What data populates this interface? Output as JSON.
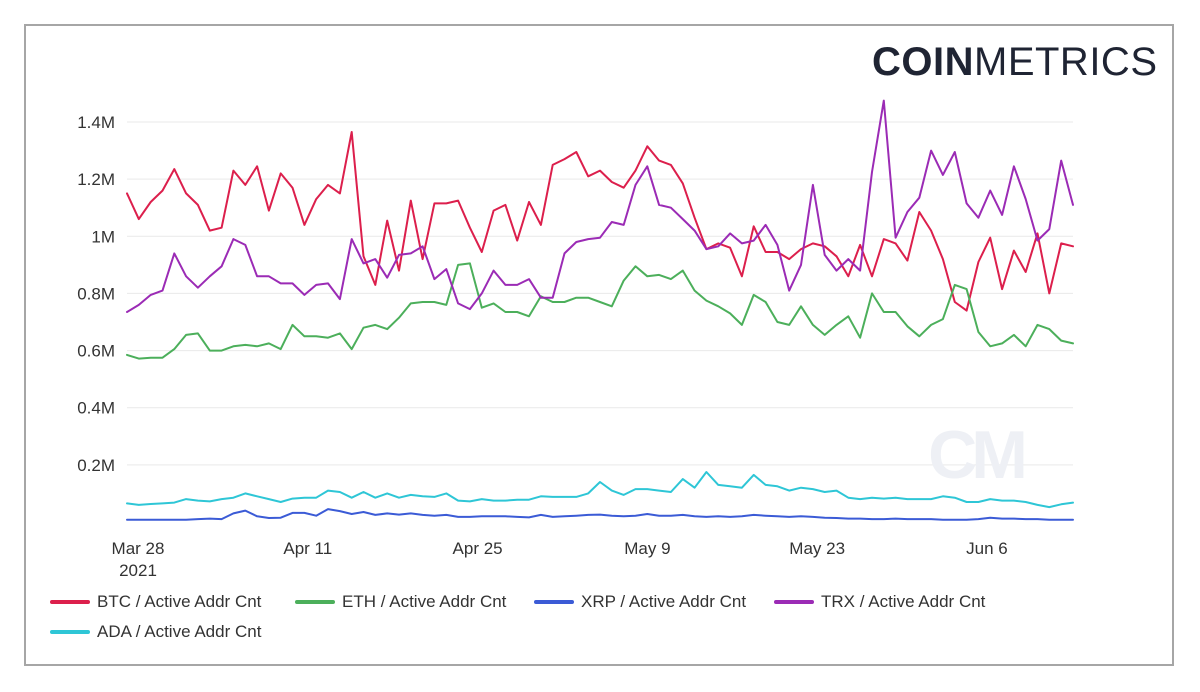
{
  "brand": {
    "part1": "COIN",
    "part2": "METRICS"
  },
  "watermark": "CM",
  "chart_data": {
    "type": "line",
    "ylim": [
      0,
      1400000
    ],
    "y_ticks": [
      {
        "value": 200000,
        "label": "0.2M"
      },
      {
        "value": 400000,
        "label": "0.4M"
      },
      {
        "value": 600000,
        "label": "0.6M"
      },
      {
        "value": 800000,
        "label": "0.8M"
      },
      {
        "value": 1000000,
        "label": "1M"
      },
      {
        "value": 1200000,
        "label": "1.2M"
      },
      {
        "value": 1400000,
        "label": "1.4M"
      }
    ],
    "x_start": "2021-03-28",
    "x_end": "2021-06-14",
    "x_ticks": [
      {
        "date": "2021-03-28",
        "label": "Mar 28",
        "sublabel": "2021"
      },
      {
        "date": "2021-04-11",
        "label": "Apr 11"
      },
      {
        "date": "2021-04-25",
        "label": "Apr 25"
      },
      {
        "date": "2021-05-09",
        "label": "May 9"
      },
      {
        "date": "2021-05-23",
        "label": "May 23"
      },
      {
        "date": "2021-06-06",
        "label": "Jun 6"
      }
    ],
    "grid": true,
    "legend_position": "bottom-left",
    "series": [
      {
        "name": "BTC / Active Addr Cnt",
        "color": "#dc1f4c",
        "values": [
          1150000,
          1060000,
          1120000,
          1160000,
          1235000,
          1150000,
          1110000,
          1020000,
          1030000,
          1230000,
          1180000,
          1245000,
          1090000,
          1220000,
          1170000,
          1040000,
          1130000,
          1180000,
          1150000,
          1365000,
          930000,
          830000,
          1055000,
          880000,
          1125000,
          920000,
          1115000,
          1115000,
          1125000,
          1030000,
          945000,
          1090000,
          1110000,
          985000,
          1120000,
          1040000,
          1250000,
          1270000,
          1295000,
          1210000,
          1230000,
          1190000,
          1170000,
          1230000,
          1315000,
          1265000,
          1250000,
          1185000,
          1065000,
          955000,
          975000,
          960000,
          860000,
          1035000,
          945000,
          945000,
          920000,
          955000,
          975000,
          965000,
          930000,
          860000,
          970000,
          860000,
          990000,
          975000,
          915000,
          1085000,
          1020000,
          920000,
          770000,
          740000,
          910000,
          995000,
          815000,
          950000,
          875000,
          1010000,
          800000,
          975000,
          965000
        ]
      },
      {
        "name": "ETH / Active Addr Cnt",
        "color": "#4caf5b",
        "values": [
          585000,
          572000,
          575000,
          575000,
          605000,
          655000,
          660000,
          600000,
          600000,
          615000,
          620000,
          615000,
          625000,
          605000,
          690000,
          650000,
          650000,
          645000,
          660000,
          605000,
          680000,
          690000,
          675000,
          715000,
          765000,
          770000,
          770000,
          760000,
          900000,
          905000,
          750000,
          765000,
          735000,
          735000,
          720000,
          790000,
          770000,
          770000,
          785000,
          785000,
          770000,
          755000,
          845000,
          895000,
          860000,
          865000,
          850000,
          880000,
          810000,
          775000,
          755000,
          730000,
          690000,
          795000,
          770000,
          700000,
          690000,
          755000,
          690000,
          655000,
          690000,
          720000,
          645000,
          800000,
          735000,
          735000,
          685000,
          650000,
          690000,
          710000,
          830000,
          815000,
          665000,
          615000,
          625000,
          655000,
          615000,
          690000,
          675000,
          635000,
          625000
        ]
      },
      {
        "name": "XRP / Active Addr Cnt",
        "color": "#3b5bd6",
        "values": [
          8000,
          8000,
          8000,
          8000,
          8000,
          8000,
          10000,
          12000,
          10000,
          30000,
          40000,
          20000,
          14000,
          15000,
          32000,
          32000,
          22000,
          45000,
          38000,
          28000,
          35000,
          25000,
          30000,
          26000,
          30000,
          25000,
          22000,
          25000,
          18000,
          18000,
          20000,
          20000,
          20000,
          18000,
          16000,
          25000,
          18000,
          20000,
          22000,
          25000,
          26000,
          22000,
          20000,
          22000,
          28000,
          22000,
          22000,
          25000,
          20000,
          18000,
          20000,
          18000,
          20000,
          25000,
          22000,
          20000,
          18000,
          20000,
          18000,
          15000,
          14000,
          12000,
          12000,
          10000,
          10000,
          12000,
          10000,
          10000,
          10000,
          8000,
          8000,
          8000,
          10000,
          15000,
          12000,
          12000,
          10000,
          10000,
          8000,
          8000,
          8000
        ]
      },
      {
        "name": "TRX / Active Addr Cnt",
        "color": "#9b2bb5",
        "values": [
          735000,
          760000,
          795000,
          810000,
          940000,
          860000,
          820000,
          860000,
          895000,
          990000,
          970000,
          860000,
          860000,
          835000,
          835000,
          795000,
          830000,
          835000,
          780000,
          990000,
          905000,
          920000,
          855000,
          935000,
          940000,
          965000,
          850000,
          885000,
          765000,
          745000,
          800000,
          880000,
          830000,
          830000,
          850000,
          785000,
          785000,
          940000,
          980000,
          990000,
          995000,
          1050000,
          1040000,
          1180000,
          1245000,
          1110000,
          1100000,
          1060000,
          1020000,
          955000,
          965000,
          1010000,
          975000,
          985000,
          1040000,
          970000,
          810000,
          900000,
          1180000,
          935000,
          880000,
          920000,
          880000,
          1225000,
          1475000,
          995000,
          1085000,
          1135000,
          1300000,
          1215000,
          1295000,
          1115000,
          1065000,
          1160000,
          1075000,
          1245000,
          1130000,
          985000,
          1025000,
          1265000,
          1110000
        ]
      },
      {
        "name": "ADA / Active Addr Cnt",
        "color": "#2ec6d6",
        "values": [
          65000,
          60000,
          63000,
          65000,
          68000,
          80000,
          75000,
          72000,
          80000,
          85000,
          100000,
          90000,
          80000,
          70000,
          82000,
          85000,
          85000,
          110000,
          105000,
          85000,
          105000,
          85000,
          100000,
          85000,
          95000,
          90000,
          88000,
          100000,
          75000,
          72000,
          80000,
          75000,
          75000,
          78000,
          78000,
          90000,
          88000,
          88000,
          88000,
          100000,
          140000,
          110000,
          95000,
          115000,
          115000,
          110000,
          105000,
          150000,
          120000,
          175000,
          130000,
          125000,
          120000,
          165000,
          130000,
          125000,
          110000,
          120000,
          115000,
          105000,
          110000,
          85000,
          80000,
          85000,
          82000,
          85000,
          80000,
          80000,
          80000,
          90000,
          85000,
          70000,
          70000,
          80000,
          75000,
          75000,
          70000,
          60000,
          52000,
          62000,
          68000
        ]
      }
    ]
  }
}
